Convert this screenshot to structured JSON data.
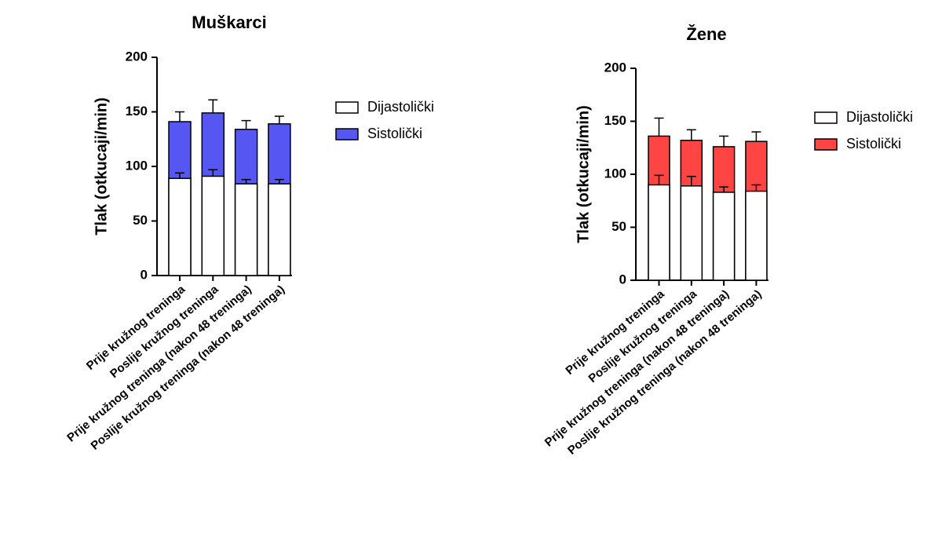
{
  "chart_data": [
    {
      "type": "bar",
      "bar_mode": "overlap",
      "title": "Muškarci",
      "y_label": "Tlak (otkucaji/min)",
      "categories": [
        "Prije kružnog treninga",
        "Poslije kružnog treninga",
        "Prije kružnog treninga (nakon 48 treninga)",
        "Poslije kružnog treninga (nakon 48 treninga)"
      ],
      "series": [
        {
          "name": "Dijastolički",
          "color": "#ffffff",
          "values": [
            89,
            91,
            84,
            84
          ],
          "errors": [
            5,
            6,
            4,
            4
          ]
        },
        {
          "name": "Sistolički",
          "color": "#5656f2",
          "values": [
            141,
            149,
            134,
            139
          ],
          "errors": [
            9,
            12,
            8,
            7
          ]
        }
      ],
      "ylim": [
        0,
        200
      ],
      "yticks": [
        0,
        50,
        100,
        150,
        200
      ],
      "legend": "right"
    },
    {
      "type": "bar",
      "bar_mode": "overlap",
      "title": "Žene",
      "y_label": "Tlak (otkucaji/min)",
      "categories": [
        "Prije kružnog treninga",
        "Poslije kružnog treninga",
        "Prije kružnog treninga (nakon 48 treninga)",
        "Poslije kružnog treninga (nakon 48 treninga)"
      ],
      "series": [
        {
          "name": "Dijastolički",
          "color": "#ffffff",
          "values": [
            90,
            89,
            83,
            84
          ],
          "errors": [
            9,
            9,
            5,
            6
          ]
        },
        {
          "name": "Sistolički",
          "color": "#ff4444",
          "values": [
            136,
            132,
            126,
            131
          ],
          "errors": [
            17,
            10,
            10,
            9
          ]
        }
      ],
      "ylim": [
        0,
        200
      ],
      "yticks": [
        0,
        50,
        100,
        150,
        200
      ],
      "legend": "right"
    }
  ]
}
